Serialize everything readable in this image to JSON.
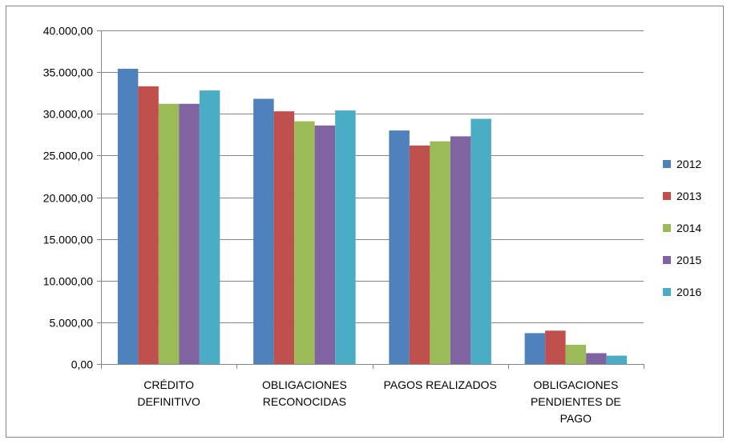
{
  "chart_data": {
    "type": "bar",
    "title": "",
    "xlabel": "",
    "ylabel": "",
    "categories": [
      [
        "CRÉDITO",
        "DEFINITIVO"
      ],
      [
        "OBLIGACIONES",
        "RECONOCIDAS"
      ],
      [
        "PAGOS REALIZADOS"
      ],
      [
        "OBLIGACIONES",
        "PENDIENTES DE",
        "PAGO"
      ]
    ],
    "series": [
      {
        "name": "2012",
        "color": "#4F81BD",
        "values": [
          35400,
          31800,
          28000,
          3700
        ]
      },
      {
        "name": "2013",
        "color": "#C0504D",
        "values": [
          33300,
          30300,
          26200,
          4000
        ]
      },
      {
        "name": "2014",
        "color": "#9BBB59",
        "values": [
          31200,
          29100,
          26700,
          2300
        ]
      },
      {
        "name": "2015",
        "color": "#8064A2",
        "values": [
          31200,
          28600,
          27300,
          1300
        ]
      },
      {
        "name": "2016",
        "color": "#4BACC6",
        "values": [
          32800,
          30400,
          29400,
          1000
        ]
      }
    ],
    "ylim": [
      0,
      40000
    ],
    "yticks": [
      {
        "value": 0,
        "label": "0,00"
      },
      {
        "value": 5000,
        "label": "5.000,00"
      },
      {
        "value": 10000,
        "label": "10.000,00"
      },
      {
        "value": 15000,
        "label": "15.000,00"
      },
      {
        "value": 20000,
        "label": "20.000,00"
      },
      {
        "value": 25000,
        "label": "25.000,00"
      },
      {
        "value": 30000,
        "label": "30.000,00"
      },
      {
        "value": 35000,
        "label": "35.000,00"
      },
      {
        "value": 40000,
        "label": "40.000,00"
      }
    ],
    "grid": true,
    "legend": "right"
  }
}
